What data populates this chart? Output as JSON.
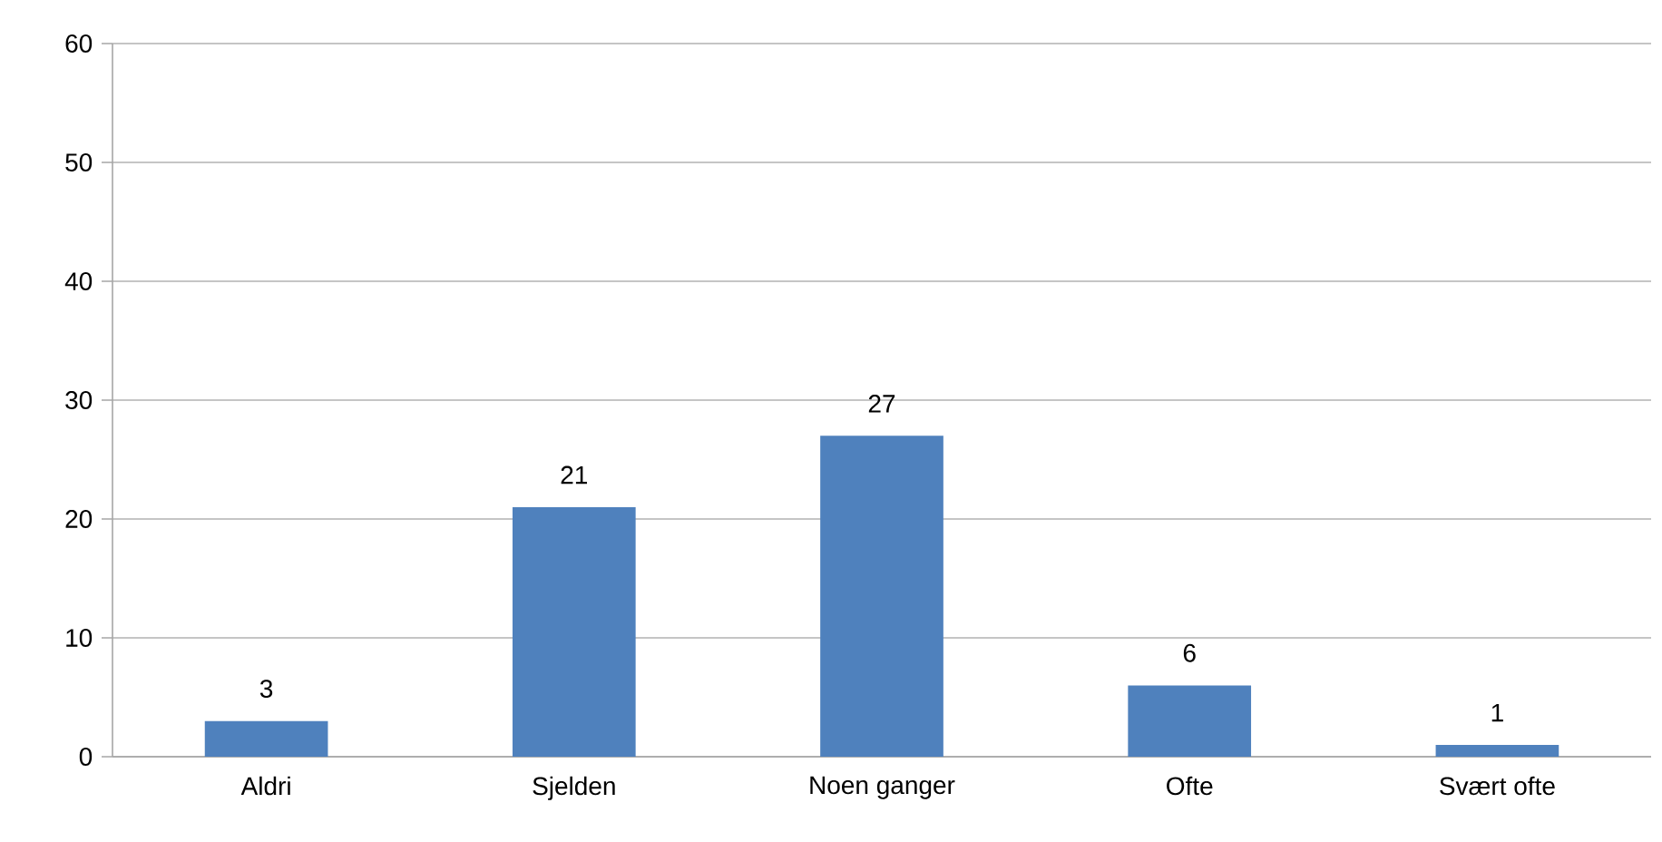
{
  "chart_data": {
    "type": "bar",
    "categories": [
      "Aldri",
      "Sjelden",
      "Noen ganger",
      "Ofte",
      "Svært ofte"
    ],
    "values": [
      3,
      21,
      27,
      6,
      1
    ],
    "color": "#4f81bd",
    "ylim": [
      0,
      60
    ],
    "yticks": [
      0,
      10,
      20,
      30,
      40,
      50,
      60
    ],
    "grid": "y",
    "data_labels": true
  }
}
